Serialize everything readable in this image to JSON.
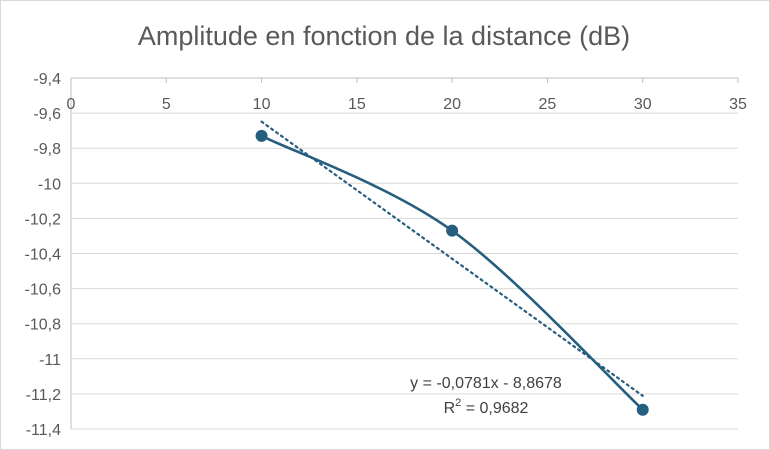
{
  "chart_data": {
    "type": "scatter",
    "title": "Amplitude en fonction de la distance (dB)",
    "xlabel": "",
    "ylabel": "",
    "xlim": [
      0,
      35
    ],
    "ylim": [
      -11.4,
      -9.4
    ],
    "x_ticks": [
      0,
      5,
      10,
      15,
      20,
      25,
      30,
      35
    ],
    "x_tick_labels": [
      "0",
      "5",
      "10",
      "15",
      "20",
      "25",
      "30",
      "35"
    ],
    "y_ticks": [
      -9.4,
      -9.6,
      -9.8,
      -10.0,
      -10.2,
      -10.4,
      -10.6,
      -10.8,
      -11.0,
      -11.2,
      -11.4
    ],
    "y_tick_labels": [
      "-9,4",
      "-9,6",
      "-9,8",
      "-10",
      "-10,2",
      "-10,4",
      "-10,6",
      "-10,8",
      "-11",
      "-11,2",
      "-11,4"
    ],
    "grid": true,
    "x_axis_position": "top",
    "series": [
      {
        "x": [
          10,
          20,
          30
        ],
        "y": [
          -9.73,
          -10.27,
          -11.29
        ],
        "line": "smooth",
        "markers": true,
        "color": "#255E7E"
      }
    ],
    "trendline": {
      "type": "linear",
      "slope": -0.0781,
      "intercept": -8.8678,
      "x_range": [
        10,
        30
      ],
      "style": "dotted",
      "color": "#255E7E",
      "equation_label": "y = -0,0781x - 8,8678",
      "r2_label_prefix": "R",
      "r2_label_exponent": "2",
      "r2_label_suffix": " = 0,9682"
    },
    "colors": {
      "grid": "#D9D9D9",
      "axis": "#BFBFBF",
      "text": "#595959"
    }
  }
}
